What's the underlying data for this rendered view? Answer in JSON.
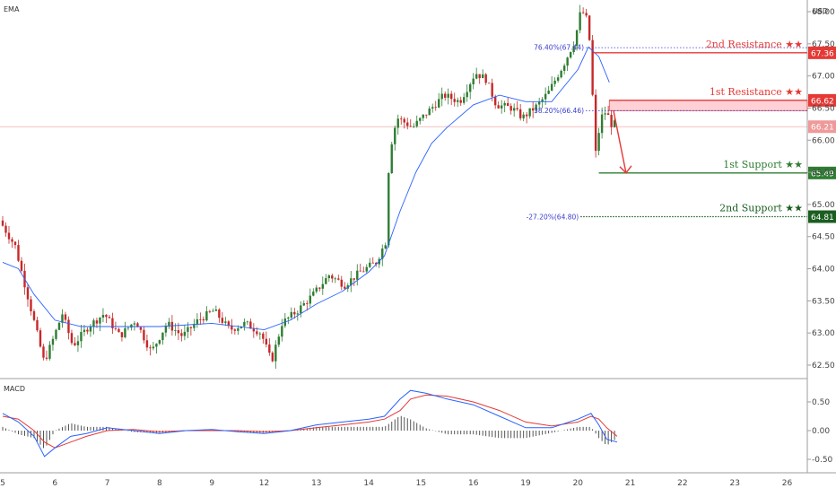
{
  "chart_data": [
    {
      "type": "candlestick",
      "panel": "price",
      "indicator_label": "EMA",
      "currency_label": "USD",
      "x_tick_labels": [
        "5",
        "6",
        "7",
        "8",
        "9",
        "12",
        "13",
        "14",
        "15",
        "16",
        "19",
        "20",
        "21",
        "22",
        "23",
        "26"
      ],
      "y_tick_labels": [
        "62.50",
        "63.00",
        "63.50",
        "64.00",
        "64.50",
        "65.00",
        "65.50",
        "66.00",
        "66.50",
        "67.00",
        "67.50",
        "68.00"
      ],
      "ylim": [
        62.25,
        68.15
      ],
      "price_path": [
        [
          0,
          64.75
        ],
        [
          0.15,
          64.55
        ],
        [
          0.3,
          64.35
        ],
        [
          0.5,
          63.7
        ],
        [
          0.7,
          63.05
        ],
        [
          0.85,
          62.55
        ],
        [
          1.0,
          62.85
        ],
        [
          1.2,
          63.3
        ],
        [
          1.4,
          62.8
        ],
        [
          1.7,
          63.1
        ],
        [
          2.0,
          63.3
        ],
        [
          2.3,
          62.95
        ],
        [
          2.6,
          63.2
        ],
        [
          2.9,
          62.7
        ],
        [
          3.2,
          63.15
        ],
        [
          3.5,
          62.95
        ],
        [
          3.8,
          63.2
        ],
        [
          4.1,
          63.35
        ],
        [
          4.4,
          63.05
        ],
        [
          4.7,
          63.15
        ],
        [
          5.0,
          63.0
        ],
        [
          5.2,
          62.55
        ],
        [
          5.4,
          63.15
        ],
        [
          5.7,
          63.35
        ],
        [
          6.0,
          63.6
        ],
        [
          6.3,
          63.9
        ],
        [
          6.6,
          63.75
        ],
        [
          6.9,
          63.95
        ],
        [
          7.2,
          64.1
        ],
        [
          7.4,
          64.45
        ],
        [
          7.45,
          65.8
        ],
        [
          7.6,
          66.35
        ],
        [
          7.9,
          66.2
        ],
        [
          8.2,
          66.45
        ],
        [
          8.5,
          66.7
        ],
        [
          8.8,
          66.6
        ],
        [
          9.1,
          67.05
        ],
        [
          9.3,
          66.95
        ],
        [
          9.5,
          66.55
        ],
        [
          9.8,
          66.5
        ],
        [
          10.0,
          66.35
        ],
        [
          10.3,
          66.55
        ],
        [
          10.5,
          66.75
        ],
        [
          10.8,
          67.2
        ],
        [
          11.0,
          67.55
        ],
        [
          11.1,
          67.95
        ],
        [
          11.2,
          68.0
        ],
        [
          11.3,
          67.45
        ],
        [
          11.35,
          66.5
        ],
        [
          11.4,
          65.8
        ],
        [
          11.5,
          66.35
        ],
        [
          11.6,
          66.45
        ],
        [
          11.7,
          66.25
        ]
      ],
      "ema_path": [
        [
          0,
          64.1
        ],
        [
          0.3,
          64.0
        ],
        [
          0.6,
          63.6
        ],
        [
          1.0,
          63.2
        ],
        [
          1.5,
          63.1
        ],
        [
          2.0,
          63.1
        ],
        [
          3.0,
          63.1
        ],
        [
          4.0,
          63.15
        ],
        [
          5.0,
          63.05
        ],
        [
          5.5,
          63.2
        ],
        [
          6.0,
          63.45
        ],
        [
          6.5,
          63.65
        ],
        [
          7.0,
          63.95
        ],
        [
          7.3,
          64.2
        ],
        [
          7.6,
          64.9
        ],
        [
          7.9,
          65.5
        ],
        [
          8.2,
          65.95
        ],
        [
          8.5,
          66.2
        ],
        [
          9.0,
          66.55
        ],
        [
          9.5,
          66.7
        ],
        [
          10.0,
          66.6
        ],
        [
          10.5,
          66.6
        ],
        [
          11.0,
          67.1
        ],
        [
          11.2,
          67.45
        ],
        [
          11.4,
          67.3
        ],
        [
          11.6,
          66.9
        ]
      ],
      "last_price": 66.21,
      "levels": [
        {
          "name": "2nd Resistance",
          "value": 67.36,
          "label": "2nd Resistance ★★",
          "tag": "67.36",
          "color": "#e53935",
          "style": "solid"
        },
        {
          "name": "1st Resistance",
          "value": 66.62,
          "label": "1st Resistance ★★",
          "tag": "66.62",
          "color": "#e53935",
          "style": "solid"
        },
        {
          "name": "1st Support",
          "value": 65.49,
          "label": "1st Support ★★",
          "tag": "65.49",
          "color": "#2e7d32",
          "style": "solid"
        },
        {
          "name": "2nd Support",
          "value": 64.81,
          "label": "2nd Support ★★",
          "tag": "64.81",
          "color": "#1b5e20",
          "style": "dotted"
        }
      ],
      "last_price_tag": {
        "value": 66.21,
        "tag": "66.21",
        "color": "#ef9a9a"
      },
      "fib_labels": [
        {
          "text": "76.40%(67.44)",
          "value": 67.44
        },
        {
          "text": "38.20%(66.46)",
          "value": 66.46
        },
        {
          "text": "-27.20%(64.80)",
          "value": 64.8
        }
      ],
      "resistance_zone": [
        66.46,
        66.62
      ],
      "arrow": {
        "from": [
          11.68,
          66.46
        ],
        "to": [
          11.92,
          65.49
        ]
      }
    },
    {
      "type": "line",
      "panel": "macd",
      "indicator_label": "MACD",
      "y_tick_labels": [
        "0.50",
        "0.00",
        "-0.50"
      ],
      "ylim": [
        -0.62,
        0.82
      ],
      "macd_line": [
        [
          0,
          0.3
        ],
        [
          0.3,
          0.15
        ],
        [
          0.6,
          -0.1
        ],
        [
          0.8,
          -0.45
        ],
        [
          1.0,
          -0.3
        ],
        [
          1.3,
          -0.1
        ],
        [
          1.6,
          -0.05
        ],
        [
          2.0,
          0.05
        ],
        [
          2.5,
          0.0
        ],
        [
          3.0,
          -0.05
        ],
        [
          3.5,
          0.0
        ],
        [
          4.0,
          0.02
        ],
        [
          4.5,
          -0.02
        ],
        [
          5.0,
          -0.05
        ],
        [
          5.5,
          0.0
        ],
        [
          6.0,
          0.1
        ],
        [
          6.5,
          0.15
        ],
        [
          7.0,
          0.2
        ],
        [
          7.3,
          0.25
        ],
        [
          7.6,
          0.55
        ],
        [
          7.8,
          0.7
        ],
        [
          8.1,
          0.65
        ],
        [
          8.5,
          0.55
        ],
        [
          9.0,
          0.45
        ],
        [
          9.5,
          0.25
        ],
        [
          10.0,
          0.05
        ],
        [
          10.5,
          0.05
        ],
        [
          11.0,
          0.2
        ],
        [
          11.25,
          0.3
        ],
        [
          11.4,
          0.1
        ],
        [
          11.55,
          -0.15
        ],
        [
          11.75,
          -0.2
        ]
      ],
      "signal_line": [
        [
          0,
          0.25
        ],
        [
          0.3,
          0.2
        ],
        [
          0.6,
          0.0
        ],
        [
          0.8,
          -0.2
        ],
        [
          1.0,
          -0.3
        ],
        [
          1.3,
          -0.2
        ],
        [
          1.6,
          -0.1
        ],
        [
          2.0,
          0.0
        ],
        [
          2.5,
          0.02
        ],
        [
          3.0,
          -0.02
        ],
        [
          3.5,
          0.0
        ],
        [
          4.0,
          0.0
        ],
        [
          4.5,
          0.0
        ],
        [
          5.0,
          -0.02
        ],
        [
          5.5,
          0.0
        ],
        [
          6.0,
          0.05
        ],
        [
          6.5,
          0.1
        ],
        [
          7.0,
          0.15
        ],
        [
          7.3,
          0.2
        ],
        [
          7.6,
          0.35
        ],
        [
          7.8,
          0.55
        ],
        [
          8.1,
          0.62
        ],
        [
          8.5,
          0.6
        ],
        [
          9.0,
          0.5
        ],
        [
          9.5,
          0.35
        ],
        [
          10.0,
          0.15
        ],
        [
          10.5,
          0.08
        ],
        [
          11.0,
          0.15
        ],
        [
          11.25,
          0.25
        ],
        [
          11.4,
          0.2
        ],
        [
          11.55,
          0.05
        ],
        [
          11.75,
          -0.1
        ]
      ],
      "line_colors": {
        "macd": "#2962ff",
        "signal": "#e53935"
      }
    }
  ]
}
